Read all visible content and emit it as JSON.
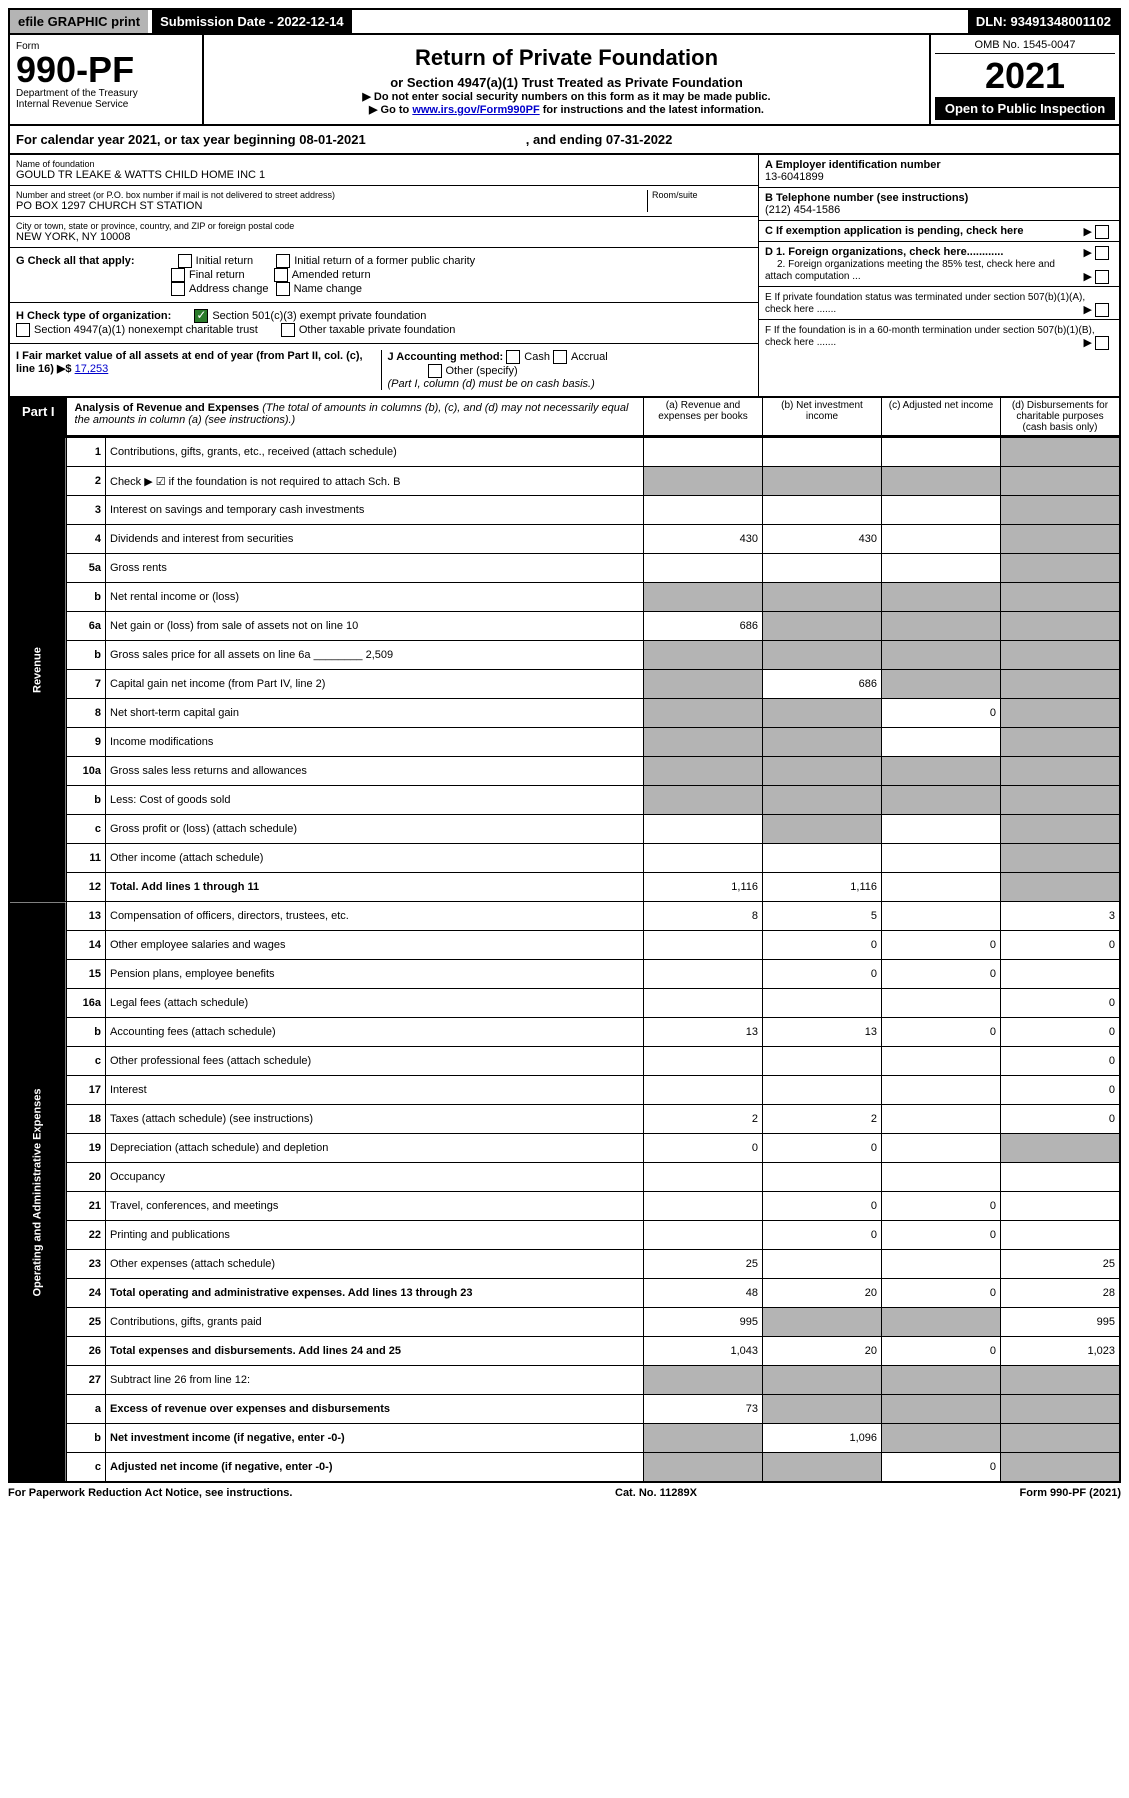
{
  "topbar": {
    "efile": "efile GRAPHIC print",
    "submission": "Submission Date - 2022-12-14",
    "dln": "DLN: 93491348001102"
  },
  "header": {
    "form_label": "Form",
    "form_no": "990-PF",
    "dept": "Department of the Treasury",
    "irs": "Internal Revenue Service",
    "title": "Return of Private Foundation",
    "subtitle": "or Section 4947(a)(1) Trust Treated as Private Foundation",
    "note1": "▶ Do not enter social security numbers on this form as it may be made public.",
    "note2_pre": "▶ Go to ",
    "note2_link": "www.irs.gov/Form990PF",
    "note2_post": " for instructions and the latest information.",
    "omb": "OMB No. 1545-0047",
    "year": "2021",
    "open": "Open to Public Inspection"
  },
  "calendar": {
    "text": "For calendar year 2021, or tax year beginning 08-01-2021",
    "ending": ", and ending 07-31-2022"
  },
  "foundation": {
    "name_label": "Name of foundation",
    "name": "GOULD TR LEAKE & WATTS CHILD HOME INC 1",
    "addr_label": "Number and street (or P.O. box number if mail is not delivered to street address)",
    "addr": "PO BOX 1297 CHURCH ST STATION",
    "room_label": "Room/suite",
    "city_label": "City or town, state or province, country, and ZIP or foreign postal code",
    "city": "NEW YORK, NY  10008"
  },
  "right_info": {
    "a_label": "A Employer identification number",
    "a_val": "13-6041899",
    "b_label": "B Telephone number (see instructions)",
    "b_val": "(212) 454-1586",
    "c_label": "C If exemption application is pending, check here",
    "d1_label": "D 1. Foreign organizations, check here............",
    "d2_label": "2. Foreign organizations meeting the 85% test, check here and attach computation ...",
    "e_label": "E  If private foundation status was terminated under section 507(b)(1)(A), check here .......",
    "f_label": "F  If the foundation is in a 60-month termination under section 507(b)(1)(B), check here ......."
  },
  "g": {
    "label": "G Check all that apply:",
    "opts": [
      "Initial return",
      "Initial return of a former public charity",
      "Final return",
      "Amended return",
      "Address change",
      "Name change"
    ]
  },
  "h": {
    "label": "H Check type of organization:",
    "opt1": "Section 501(c)(3) exempt private foundation",
    "opt2": "Section 4947(a)(1) nonexempt charitable trust",
    "opt3": "Other taxable private foundation"
  },
  "i": {
    "label": "I Fair market value of all assets at end of year (from Part II, col. (c), line 16) ▶$",
    "val": "17,253",
    "j_label": "J Accounting method:",
    "j_cash": "Cash",
    "j_accrual": "Accrual",
    "j_other": "Other (specify)",
    "j_note": "(Part I, column (d) must be on cash basis.)"
  },
  "part1": {
    "tab": "Part I",
    "title": "Analysis of Revenue and Expenses",
    "title_note": " (The total of amounts in columns (b), (c), and (d) may not necessarily equal the amounts in column (a) (see instructions).)",
    "col_a": "(a)   Revenue and expenses per books",
    "col_b": "(b)   Net investment income",
    "col_c": "(c)   Adjusted net income",
    "col_d": "(d)   Disbursements for charitable purposes (cash basis only)"
  },
  "sidetabs": {
    "revenue": "Revenue",
    "expenses": "Operating and Administrative Expenses"
  },
  "rows": [
    {
      "n": "1",
      "desc": "Contributions, gifts, grants, etc., received (attach schedule)",
      "a": "",
      "b": "",
      "c": "",
      "d": "",
      "grey": [
        "d"
      ]
    },
    {
      "n": "2",
      "desc": "Check ▶ ☑ if the foundation is not required to attach Sch. B",
      "a": "",
      "b": "",
      "c": "",
      "d": "",
      "grey": [
        "a",
        "b",
        "c",
        "d"
      ],
      "merge": true
    },
    {
      "n": "3",
      "desc": "Interest on savings and temporary cash investments",
      "a": "",
      "b": "",
      "c": "",
      "d": "",
      "grey": [
        "d"
      ]
    },
    {
      "n": "4",
      "desc": "Dividends and interest from securities",
      "a": "430",
      "b": "430",
      "c": "",
      "d": "",
      "grey": [
        "d"
      ]
    },
    {
      "n": "5a",
      "desc": "Gross rents",
      "a": "",
      "b": "",
      "c": "",
      "d": "",
      "grey": [
        "d"
      ]
    },
    {
      "n": "b",
      "desc": "Net rental income or (loss)",
      "a": "",
      "b": "",
      "c": "",
      "d": "",
      "grey": [
        "a",
        "b",
        "c",
        "d"
      ]
    },
    {
      "n": "6a",
      "desc": "Net gain or (loss) from sale of assets not on line 10",
      "a": "686",
      "b": "",
      "c": "",
      "d": "",
      "grey": [
        "b",
        "c",
        "d"
      ]
    },
    {
      "n": "b",
      "desc": "Gross sales price for all assets on line 6a ________ 2,509",
      "a": "",
      "b": "",
      "c": "",
      "d": "",
      "grey": [
        "a",
        "b",
        "c",
        "d"
      ]
    },
    {
      "n": "7",
      "desc": "Capital gain net income (from Part IV, line 2)",
      "a": "",
      "b": "686",
      "c": "",
      "d": "",
      "grey": [
        "a",
        "c",
        "d"
      ]
    },
    {
      "n": "8",
      "desc": "Net short-term capital gain",
      "a": "",
      "b": "",
      "c": "0",
      "d": "",
      "grey": [
        "a",
        "b",
        "d"
      ]
    },
    {
      "n": "9",
      "desc": "Income modifications",
      "a": "",
      "b": "",
      "c": "",
      "d": "",
      "grey": [
        "a",
        "b",
        "d"
      ]
    },
    {
      "n": "10a",
      "desc": "Gross sales less returns and allowances",
      "a": "",
      "b": "",
      "c": "",
      "d": "",
      "grey": [
        "a",
        "b",
        "c",
        "d"
      ]
    },
    {
      "n": "b",
      "desc": "Less: Cost of goods sold",
      "a": "",
      "b": "",
      "c": "",
      "d": "",
      "grey": [
        "a",
        "b",
        "c",
        "d"
      ]
    },
    {
      "n": "c",
      "desc": "Gross profit or (loss) (attach schedule)",
      "a": "",
      "b": "",
      "c": "",
      "d": "",
      "grey": [
        "b",
        "d"
      ]
    },
    {
      "n": "11",
      "desc": "Other income (attach schedule)",
      "a": "",
      "b": "",
      "c": "",
      "d": "",
      "grey": [
        "d"
      ]
    },
    {
      "n": "12",
      "desc": "Total. Add lines 1 through 11",
      "a": "1,116",
      "b": "1,116",
      "c": "",
      "d": "",
      "grey": [
        "d"
      ],
      "bold": true
    },
    {
      "n": "13",
      "desc": "Compensation of officers, directors, trustees, etc.",
      "a": "8",
      "b": "5",
      "c": "",
      "d": "3"
    },
    {
      "n": "14",
      "desc": "Other employee salaries and wages",
      "a": "",
      "b": "0",
      "c": "0",
      "d": "0"
    },
    {
      "n": "15",
      "desc": "Pension plans, employee benefits",
      "a": "",
      "b": "0",
      "c": "0",
      "d": ""
    },
    {
      "n": "16a",
      "desc": "Legal fees (attach schedule)",
      "a": "",
      "b": "",
      "c": "",
      "d": "0"
    },
    {
      "n": "b",
      "desc": "Accounting fees (attach schedule)",
      "a": "13",
      "b": "13",
      "c": "0",
      "d": "0"
    },
    {
      "n": "c",
      "desc": "Other professional fees (attach schedule)",
      "a": "",
      "b": "",
      "c": "",
      "d": "0"
    },
    {
      "n": "17",
      "desc": "Interest",
      "a": "",
      "b": "",
      "c": "",
      "d": "0"
    },
    {
      "n": "18",
      "desc": "Taxes (attach schedule) (see instructions)",
      "a": "2",
      "b": "2",
      "c": "",
      "d": "0"
    },
    {
      "n": "19",
      "desc": "Depreciation (attach schedule) and depletion",
      "a": "0",
      "b": "0",
      "c": "",
      "d": "",
      "grey": [
        "d"
      ]
    },
    {
      "n": "20",
      "desc": "Occupancy",
      "a": "",
      "b": "",
      "c": "",
      "d": ""
    },
    {
      "n": "21",
      "desc": "Travel, conferences, and meetings",
      "a": "",
      "b": "0",
      "c": "0",
      "d": ""
    },
    {
      "n": "22",
      "desc": "Printing and publications",
      "a": "",
      "b": "0",
      "c": "0",
      "d": ""
    },
    {
      "n": "23",
      "desc": "Other expenses (attach schedule)",
      "a": "25",
      "b": "",
      "c": "",
      "d": "25"
    },
    {
      "n": "24",
      "desc": "Total operating and administrative expenses. Add lines 13 through 23",
      "a": "48",
      "b": "20",
      "c": "0",
      "d": "28",
      "bold": true
    },
    {
      "n": "25",
      "desc": "Contributions, gifts, grants paid",
      "a": "995",
      "b": "",
      "c": "",
      "d": "995",
      "grey": [
        "b",
        "c"
      ]
    },
    {
      "n": "26",
      "desc": "Total expenses and disbursements. Add lines 24 and 25",
      "a": "1,043",
      "b": "20",
      "c": "0",
      "d": "1,023",
      "bold": true
    },
    {
      "n": "27",
      "desc": "Subtract line 26 from line 12:",
      "a": "",
      "b": "",
      "c": "",
      "d": "",
      "grey": [
        "a",
        "b",
        "c",
        "d"
      ]
    },
    {
      "n": "a",
      "desc": "Excess of revenue over expenses and disbursements",
      "a": "73",
      "b": "",
      "c": "",
      "d": "",
      "grey": [
        "b",
        "c",
        "d"
      ],
      "bold": true
    },
    {
      "n": "b",
      "desc": "Net investment income (if negative, enter -0-)",
      "a": "",
      "b": "1,096",
      "c": "",
      "d": "",
      "grey": [
        "a",
        "c",
        "d"
      ],
      "bold": true
    },
    {
      "n": "c",
      "desc": "Adjusted net income (if negative, enter -0-)",
      "a": "",
      "b": "",
      "c": "0",
      "d": "",
      "grey": [
        "a",
        "b",
        "d"
      ],
      "bold": true
    }
  ],
  "footer": {
    "left": "For Paperwork Reduction Act Notice, see instructions.",
    "center": "Cat. No. 11289X",
    "right": "Form 990-PF (2021)"
  }
}
